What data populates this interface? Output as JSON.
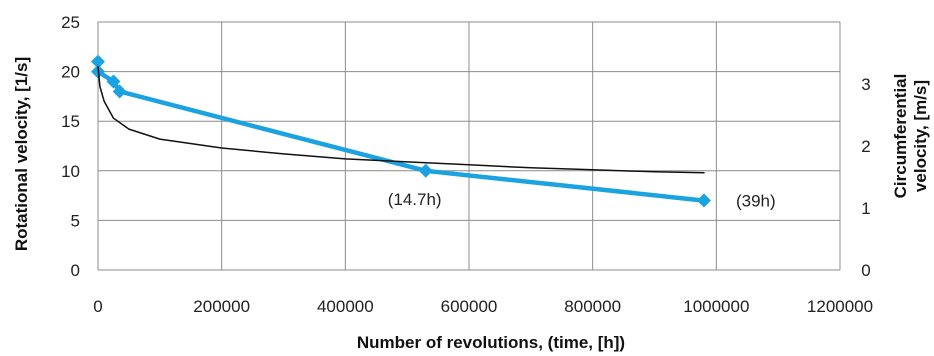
{
  "chart_data": {
    "type": "line",
    "title": "",
    "xlabel": "Number of revolutions, (time, [h])",
    "ylabel": "Rotational velocity, [1/s]",
    "y2label_line1": "Circumferential",
    "y2label_line2": "velocity, [m/s]",
    "xlim": [
      0,
      1200000
    ],
    "ylim": [
      0,
      25
    ],
    "y2lim": [
      0,
      4
    ],
    "x_ticks": [
      "0",
      "200000",
      "400000",
      "600000",
      "800000",
      "1000000",
      "1200000"
    ],
    "y_ticks": [
      "0",
      "5",
      "10",
      "15",
      "20",
      "25"
    ],
    "y2_ticks": [
      "0",
      "1",
      "2",
      "3"
    ],
    "grid": true,
    "series": [
      {
        "axis": "left",
        "color": "#1aa3e0",
        "marker": "diamond",
        "x": [
          0,
          0,
          25000,
          35000,
          530000,
          980000
        ],
        "y": [
          21,
          20,
          19,
          18,
          10,
          7
        ]
      },
      {
        "axis": "left",
        "color": "#111111",
        "marker": "none",
        "x": [
          0,
          3000,
          10000,
          25000,
          50000,
          100000,
          200000,
          300000,
          400000,
          500000,
          600000,
          700000,
          800000,
          900000,
          980000
        ],
        "y": [
          20.5,
          18.5,
          17,
          15.3,
          14.2,
          13.2,
          12.3,
          11.7,
          11.2,
          10.9,
          10.6,
          10.3,
          10.1,
          9.9,
          9.8
        ]
      }
    ],
    "annotations": [
      {
        "text": "(14.7h)",
        "x": 530000,
        "y": 10
      },
      {
        "text": "(39h)",
        "x": 980000,
        "y": 7
      }
    ]
  }
}
